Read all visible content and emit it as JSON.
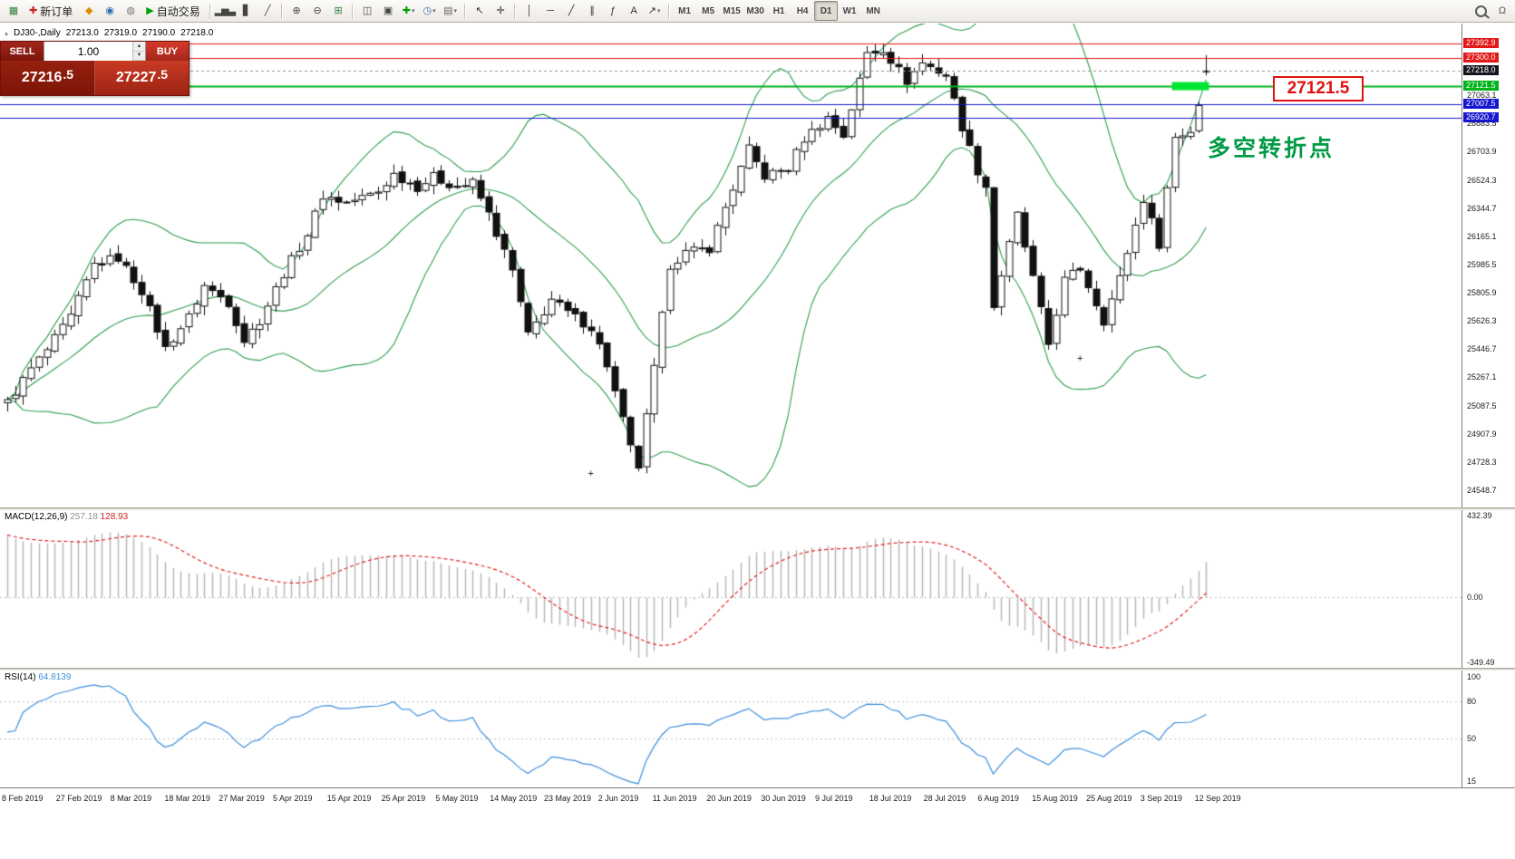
{
  "toolbar": {
    "dropdown_glyph": "▾",
    "items": [
      {
        "name": "new-chart",
        "kind": "glyph",
        "glyph": "▦",
        "glyph_color": "#2e7d32"
      },
      {
        "name": "new-order",
        "kind": "textbtn",
        "glyph": "✚",
        "glyph_color": "#cc2222",
        "label": "新订单"
      },
      {
        "name": "history-center",
        "kind": "glyph",
        "glyph": "◆",
        "glyph_color": "#d98f00"
      },
      {
        "name": "global-news",
        "kind": "glyph",
        "glyph": "◉",
        "glyph_color": "#2b6cb0"
      },
      {
        "name": "market-watch",
        "kind": "glyph",
        "glyph": "◍",
        "glyph_color": "#777777"
      },
      {
        "name": "autotrading",
        "kind": "textbtn",
        "glyph": "▶",
        "glyph_color": "#00a000",
        "label": "自动交易"
      },
      {
        "kind": "sep"
      },
      {
        "name": "bar-chart",
        "kind": "glyph",
        "glyph": "▂▅▃",
        "glyph_color": "#444444"
      },
      {
        "name": "candlestick-chart",
        "kind": "glyph",
        "glyph": "▋",
        "glyph_color": "#444444"
      },
      {
        "name": "line-chart",
        "kind": "glyph",
        "glyph": "╱",
        "glyph_color": "#444444"
      },
      {
        "kind": "sep"
      },
      {
        "name": "zoom-in",
        "kind": "glyph",
        "glyph": "⊕",
        "glyph_color": "#444444"
      },
      {
        "name": "zoom-out",
        "kind": "glyph",
        "glyph": "⊖",
        "glyph_color": "#444444"
      },
      {
        "name": "tile-windows",
        "kind": "glyph",
        "glyph": "⊞",
        "glyph_color": "#2e7d32"
      },
      {
        "kind": "sep"
      },
      {
        "name": "arrange-windows",
        "kind": "glyph",
        "glyph": "◫",
        "glyph_color": "#444444"
      },
      {
        "name": "cascade-windows",
        "kind": "glyph",
        "glyph": "▣",
        "glyph_color": "#444444"
      },
      {
        "name": "add-indicator",
        "kind": "glyph",
        "glyph": "✚",
        "glyph_color": "#00a000",
        "dropdown": true
      },
      {
        "name": "periods",
        "kind": "glyph",
        "glyph": "◷",
        "glyph_color": "#2b6cb0",
        "dropdown": true
      },
      {
        "name": "templates",
        "kind": "glyph",
        "glyph": "▤",
        "glyph_color": "#666666",
        "dropdown": true
      },
      {
        "kind": "sep"
      },
      {
        "name": "cursor",
        "kind": "glyph",
        "glyph": "↖",
        "glyph_color": "#333333"
      },
      {
        "name": "crosshair",
        "kind": "glyph",
        "glyph": "✛",
        "glyph_color": "#333333"
      },
      {
        "kind": "sep"
      },
      {
        "name": "vertical-line",
        "kind": "glyph",
        "glyph": "│",
        "glyph_color": "#333333"
      },
      {
        "name": "horizontal-line",
        "kind": "glyph",
        "glyph": "─",
        "glyph_color": "#333333"
      },
      {
        "name": "trendline",
        "kind": "glyph",
        "glyph": "╱",
        "glyph_color": "#333333"
      },
      {
        "name": "equidistant-channel",
        "kind": "glyph",
        "glyph": "∥",
        "glyph_color": "#333333"
      },
      {
        "name": "fibonacci",
        "kind": "glyph",
        "glyph": "ƒ",
        "glyph_color": "#333333"
      },
      {
        "name": "text-label",
        "kind": "glyph",
        "glyph": "A",
        "glyph_color": "#333333"
      },
      {
        "name": "arrows",
        "kind": "glyph",
        "glyph": "↗",
        "glyph_color": "#333333",
        "dropdown": true
      },
      {
        "kind": "sep"
      }
    ],
    "timeframes": [
      "M1",
      "M5",
      "M15",
      "M30",
      "H1",
      "H4",
      "D1",
      "W1",
      "MN"
    ],
    "active_timeframe": "D1",
    "right_items": [
      {
        "name": "search",
        "kind": "mag"
      },
      {
        "name": "support-chat",
        "kind": "glyph",
        "glyph": "Ω",
        "glyph_color": "#555555"
      }
    ]
  },
  "chart": {
    "info": {
      "collapse": "▴",
      "symbol_period": "DJ30-,Daily",
      "open": "27213.0",
      "high": "27319.0",
      "low": "27190.0",
      "close": "27218.0"
    }
  },
  "trade_panel": {
    "sell_button": "SELL",
    "buy_button": "BUY",
    "volume": "1.00",
    "spin_up": "▲",
    "spin_down": "▼",
    "sell_price_main": "27216",
    "sell_price_pip": ".5",
    "buy_price_main": "27227",
    "buy_price_pip": ".5"
  },
  "overlays": {
    "callout_text": "27121.5",
    "annotation_text": "多空转折点",
    "annotation_color": "#009a44",
    "hlines": [
      {
        "price": 27392.9,
        "color": "#e21717",
        "lw": 1
      },
      {
        "price": 27300.0,
        "color": "#e21717",
        "lw": 1
      },
      {
        "price": 27218.0,
        "color": "#909090",
        "lw": 1,
        "dash": true
      },
      {
        "price": 27121.5,
        "color": "#00b21b",
        "lw": 2
      },
      {
        "price": 27007.5,
        "color": "#1616cf",
        "lw": 1
      },
      {
        "price": 26920.7,
        "color": "#1616cf",
        "lw": 1
      }
    ],
    "green_marker": {
      "price": 27121.5,
      "from_bar": 148,
      "to_bar": 152,
      "color": "#00e632",
      "height": 9
    },
    "plus_markers": [
      {
        "bar": 74,
        "price": 24660
      },
      {
        "bar": 136,
        "price": 25390
      }
    ]
  },
  "price_axis": {
    "plain_labels": [
      "27063.1",
      "26883.5",
      "26703.9",
      "26524.3",
      "26344.7",
      "26165.1",
      "25985.5",
      "25805.9",
      "25626.3",
      "25446.7",
      "25267.1",
      "25087.5",
      "24907.9",
      "24728.3",
      "24548.7"
    ],
    "tags": [
      {
        "value": "27392.9",
        "bg": "#e21717"
      },
      {
        "value": "27300.0",
        "bg": "#e21717"
      },
      {
        "value": "27218.0",
        "bg": "#15151f"
      },
      {
        "value": "27121.5",
        "bg": "#00b21b"
      },
      {
        "value": "27007.5",
        "bg": "#1616cf"
      },
      {
        "value": "26920.7",
        "bg": "#1616cf"
      }
    ]
  },
  "chart_data": {
    "type": "candlestick",
    "symbol": "DJ30-",
    "timeframe": "Daily",
    "ohlc_today": {
      "open": 27213.0,
      "high": 27319.0,
      "low": 27190.0,
      "close": 27218.0
    },
    "bars_total": 153,
    "y_range": [
      24439,
      27520
    ],
    "x_labels": [
      "8 Feb 2019",
      "27 Feb 2019",
      "8 Mar 2019",
      "18 Mar 2019",
      "27 Mar 2019",
      "5 Apr 2019",
      "15 Apr 2019",
      "25 Apr 2019",
      "5 May 2019",
      "14 May 2019",
      "23 May 2019",
      "2 Jun 2019",
      "11 Jun 2019",
      "20 Jun 2019",
      "30 Jun 2019",
      "9 Jul 2019",
      "18 Jul 2019",
      "28 Jul 2019",
      "6 Aug 2019",
      "15 Aug 2019",
      "25 Aug 2019",
      "3 Sep 2019",
      "12 Sep 2019"
    ],
    "price_path": [
      [
        0,
        25106
      ],
      [
        3,
        25320
      ],
      [
        5,
        25440
      ],
      [
        8,
        25650
      ],
      [
        11,
        25985
      ],
      [
        14,
        26030
      ],
      [
        17,
        25820
      ],
      [
        20,
        25450
      ],
      [
        23,
        25650
      ],
      [
        25,
        25850
      ],
      [
        28,
        25745
      ],
      [
        30,
        25502
      ],
      [
        32,
        25630
      ],
      [
        35,
        25929
      ],
      [
        38,
        26180
      ],
      [
        40,
        26425
      ],
      [
        43,
        26380
      ],
      [
        45,
        26412
      ],
      [
        47,
        26450
      ],
      [
        49,
        26560
      ],
      [
        52,
        26480
      ],
      [
        54,
        26543
      ],
      [
        57,
        26480
      ],
      [
        59,
        26505
      ],
      [
        61,
        26307
      ],
      [
        64,
        25942
      ],
      [
        66,
        25532
      ],
      [
        69,
        25764
      ],
      [
        71,
        25679
      ],
      [
        74,
        25586
      ],
      [
        76,
        25348
      ],
      [
        79,
        24815
      ],
      [
        80,
        24700
      ],
      [
        82,
        25320
      ],
      [
        84,
        25984
      ],
      [
        86,
        26060
      ],
      [
        89,
        26090
      ],
      [
        91,
        26350
      ],
      [
        94,
        26719
      ],
      [
        96,
        26548
      ],
      [
        99,
        26600
      ],
      [
        101,
        26787
      ],
      [
        104,
        26922
      ],
      [
        106,
        26806
      ],
      [
        109,
        27332
      ],
      [
        111,
        27359
      ],
      [
        114,
        27154
      ],
      [
        116,
        27270
      ],
      [
        119,
        27192
      ],
      [
        121,
        26864
      ],
      [
        123,
        26583
      ],
      [
        124,
        26485
      ],
      [
        125,
        25718
      ],
      [
        126,
        25920
      ],
      [
        128,
        26300
      ],
      [
        130,
        25897
      ],
      [
        132,
        25479
      ],
      [
        134,
        25886
      ],
      [
        136,
        25962
      ],
      [
        139,
        25629
      ],
      [
        141,
        25898
      ],
      [
        144,
        26403
      ],
      [
        146,
        26118
      ],
      [
        147,
        26472
      ],
      [
        148,
        26797
      ],
      [
        150,
        26835
      ],
      [
        151,
        27008
      ],
      [
        152,
        27182
      ]
    ],
    "indicators": {
      "bollinger": {
        "label": "Bollinger Bands",
        "period": 20,
        "deviation": 2,
        "color": "#2f9e50"
      },
      "macd": {
        "label": "MACD(12,26,9)",
        "value_main": "257.18",
        "value_signal": "128.93",
        "axis_labels": [
          "432.39",
          "0.00",
          "-349.49"
        ],
        "range": [
          -349.49,
          432.39
        ],
        "hist_color": "#b4b4b4",
        "signal_color": "#e02020"
      },
      "rsi": {
        "label": "RSI(14)",
        "value": "64.8139",
        "axis_labels": [
          "100",
          "80",
          "50",
          "15"
        ],
        "levels": [
          80,
          50
        ],
        "line_color": "#3f8fdd",
        "range": [
          10,
          105
        ]
      }
    }
  }
}
